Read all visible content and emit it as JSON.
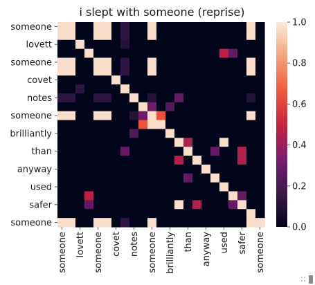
{
  "chart_data": {
    "type": "heatmap",
    "title": "i slept with someone (reprise)",
    "xlabel": "",
    "ylabel": "",
    "columns": [
      "someone",
      "lovett",
      "someone",
      "covet",
      "notes",
      "someone",
      "brilliantly",
      "than",
      "anyway",
      "used",
      "safer",
      "someone"
    ],
    "rows": [
      "someone",
      "lovett",
      "someone",
      "covet",
      "notes",
      "someone",
      "brilliantly",
      "than",
      "anyway",
      "used",
      "safer",
      "someone"
    ],
    "x_tick_labels": [
      "someone",
      "lovett",
      "someone",
      "covet",
      "notes",
      "someone",
      "brilliantly",
      "than",
      "anyway",
      "used",
      "safer",
      "someone"
    ],
    "y_tick_labels": [
      "someone",
      "lovett",
      "someone",
      "covet",
      "notes",
      "someone",
      "brilliantly",
      "than",
      "anyway",
      "used",
      "safer",
      "someone"
    ],
    "grid_size": 23,
    "vmin": 0.0,
    "vmax": 1.0,
    "colorbar_ticks": [
      0.0,
      0.2,
      0.4,
      0.6,
      0.8,
      1.0
    ],
    "colorbar_tick_labels": [
      "0.0",
      "0.2",
      "0.4",
      "0.6",
      "0.8",
      "1.0"
    ],
    "colormap": "rocket",
    "colormap_stops": [
      "#03051a",
      "#3a1a4c",
      "#7c1d6f",
      "#c8223f",
      "#ef5a3c",
      "#f5a37a",
      "#faebdd"
    ],
    "values": [
      [
        0.97,
        0.97,
        0,
        0,
        0.97,
        0.97,
        0,
        0.13,
        0,
        0,
        0.97,
        0,
        0,
        0,
        0,
        0,
        0,
        0,
        0,
        0,
        0,
        0.97,
        0
      ],
      [
        0.97,
        0.97,
        0,
        0,
        0.97,
        0.97,
        0,
        0.13,
        0,
        0,
        0.97,
        0,
        0,
        0,
        0,
        0,
        0,
        0,
        0,
        0,
        0,
        0.97,
        0
      ],
      [
        0,
        0,
        0.97,
        0,
        0,
        0,
        0,
        0.1,
        0,
        0,
        0,
        0,
        0,
        0,
        0,
        0,
        0,
        0,
        0,
        0,
        0,
        0,
        0
      ],
      [
        0,
        0,
        0,
        0.97,
        0,
        0,
        0,
        0,
        0,
        0,
        0,
        0,
        0,
        0,
        0,
        0,
        0,
        0,
        0.48,
        0.27,
        0,
        0,
        0
      ],
      [
        0.97,
        0.97,
        0,
        0,
        0.97,
        0.97,
        0,
        0.13,
        0,
        0,
        0.97,
        0,
        0,
        0,
        0,
        0,
        0,
        0,
        0,
        0,
        0,
        0.97,
        0
      ],
      [
        0.97,
        0.97,
        0,
        0,
        0.97,
        0.97,
        0,
        0.13,
        0,
        0,
        0.97,
        0,
        0,
        0,
        0,
        0,
        0,
        0,
        0,
        0,
        0,
        0.97,
        0
      ],
      [
        0,
        0,
        0,
        0,
        0,
        0,
        0.97,
        0,
        0,
        0,
        0,
        0,
        0,
        0,
        0,
        0,
        0,
        0,
        0,
        0,
        0,
        0,
        0
      ],
      [
        0,
        0,
        0.13,
        0,
        0,
        0,
        0,
        0.97,
        0,
        0,
        0,
        0,
        0,
        0,
        0,
        0,
        0,
        0,
        0,
        0,
        0,
        0,
        0
      ],
      [
        0.13,
        0.13,
        0,
        0,
        0.13,
        0.13,
        0,
        0,
        0.97,
        0,
        0.1,
        0,
        0,
        0.27,
        0,
        0,
        0,
        0,
        0,
        0,
        0,
        0.1,
        0
      ],
      [
        0,
        0,
        0,
        0,
        0,
        0,
        0,
        0,
        0,
        0.97,
        0.3,
        0,
        0.22,
        0,
        0,
        0,
        0,
        0,
        0,
        0,
        0,
        0,
        0
      ],
      [
        0.97,
        0.97,
        0,
        0,
        0.97,
        0.97,
        0,
        0,
        0.1,
        0.3,
        0.97,
        0.65,
        0,
        0,
        0,
        0,
        0,
        0,
        0,
        0,
        0,
        0.97,
        0
      ],
      [
        0,
        0,
        0,
        0,
        0,
        0,
        0,
        0,
        0,
        0.65,
        0.97,
        0.97,
        0,
        0,
        0,
        0,
        0,
        0,
        0,
        0,
        0,
        0,
        0
      ],
      [
        0,
        0,
        0,
        0,
        0,
        0,
        0,
        0,
        0.22,
        0,
        0,
        0,
        0.97,
        0,
        0,
        0,
        0,
        0,
        0,
        0,
        0,
        0,
        0
      ],
      [
        0,
        0,
        0,
        0,
        0,
        0,
        0,
        0,
        0,
        0,
        0,
        0,
        0,
        0.97,
        0.45,
        0,
        0,
        0,
        0.97,
        0,
        0,
        0,
        0
      ],
      [
        0,
        0,
        0,
        0,
        0,
        0,
        0,
        0.27,
        0,
        0,
        0,
        0,
        0,
        0,
        0.97,
        0,
        0,
        0.27,
        0,
        0,
        0.45,
        0,
        0
      ],
      [
        0,
        0,
        0,
        0,
        0,
        0,
        0,
        0,
        0,
        0,
        0,
        0,
        0,
        0.45,
        0,
        0.97,
        0,
        0,
        0,
        0,
        0.45,
        0,
        0
      ],
      [
        0,
        0,
        0,
        0,
        0,
        0,
        0,
        0,
        0,
        0,
        0,
        0,
        0,
        0,
        0,
        0,
        0.97,
        0,
        0,
        0,
        0,
        0,
        0
      ],
      [
        0,
        0,
        0,
        0,
        0,
        0,
        0,
        0,
        0,
        0,
        0,
        0,
        0,
        0,
        0.27,
        0,
        0,
        0.97,
        0,
        0,
        0,
        0,
        0
      ],
      [
        0,
        0,
        0,
        0,
        0,
        0,
        0,
        0,
        0,
        0,
        0,
        0,
        0,
        0,
        0,
        0,
        0,
        0,
        0.97,
        0,
        0,
        0,
        0
      ],
      [
        0,
        0,
        0,
        0.48,
        0,
        0,
        0,
        0,
        0,
        0,
        0,
        0,
        0,
        0,
        0,
        0,
        0,
        0,
        0,
        0.97,
        0.27,
        0,
        0
      ],
      [
        0,
        0,
        0,
        0.27,
        0,
        0,
        0,
        0,
        0,
        0,
        0,
        0,
        0,
        0.97,
        0,
        0.45,
        0,
        0,
        0,
        0.27,
        0.97,
        0,
        0
      ],
      [
        0,
        0,
        0,
        0,
        0,
        0,
        0,
        0,
        0,
        0,
        0,
        0,
        0,
        0,
        0,
        0,
        0,
        0,
        0,
        0,
        0,
        0.97,
        0
      ],
      [
        0.97,
        0.97,
        0,
        0,
        0.97,
        0.97,
        0,
        0.13,
        0,
        0,
        0.97,
        0,
        0,
        0,
        0,
        0,
        0,
        0,
        0,
        0,
        0,
        0.97,
        0.97
      ]
    ]
  }
}
